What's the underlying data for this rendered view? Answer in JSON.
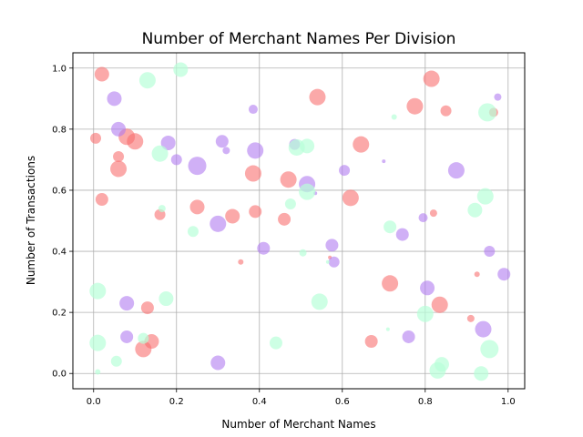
{
  "chart_data": {
    "type": "scatter",
    "title": "Number of Merchant Names Per Division",
    "xlabel": "Number of Merchant Names",
    "ylabel": "Number of Transactions",
    "xlim": [
      -0.05,
      1.04
    ],
    "ylim": [
      -0.05,
      1.05
    ],
    "xticks": [
      "0.0",
      "0.2",
      "0.4",
      "0.6",
      "0.8",
      "1.0"
    ],
    "yticks": [
      "0.0",
      "0.2",
      "0.4",
      "0.6",
      "0.8",
      "1.0"
    ],
    "grid": true,
    "colors": {
      "red": "#f87070",
      "purple": "#b17cf0",
      "green": "#b8ffd8"
    },
    "series": [
      {
        "color": "red",
        "opacity": 0.6,
        "points": [
          {
            "x": 0.02,
            "y": 0.98,
            "s": 8
          },
          {
            "x": 0.005,
            "y": 0.77,
            "s": 6
          },
          {
            "x": 0.02,
            "y": 0.57,
            "s": 7
          },
          {
            "x": 0.06,
            "y": 0.71,
            "s": 6
          },
          {
            "x": 0.06,
            "y": 0.67,
            "s": 9
          },
          {
            "x": 0.08,
            "y": 0.775,
            "s": 9
          },
          {
            "x": 0.1,
            "y": 0.76,
            "s": 9
          },
          {
            "x": 0.16,
            "y": 0.52,
            "s": 6
          },
          {
            "x": 0.13,
            "y": 0.215,
            "s": 7
          },
          {
            "x": 0.12,
            "y": 0.08,
            "s": 9
          },
          {
            "x": 0.14,
            "y": 0.105,
            "s": 8
          },
          {
            "x": 0.25,
            "y": 0.545,
            "s": 8
          },
          {
            "x": 0.335,
            "y": 0.515,
            "s": 8
          },
          {
            "x": 0.355,
            "y": 0.365,
            "s": 3
          },
          {
            "x": 0.385,
            "y": 0.655,
            "s": 9
          },
          {
            "x": 0.39,
            "y": 0.53,
            "s": 7
          },
          {
            "x": 0.46,
            "y": 0.505,
            "s": 7
          },
          {
            "x": 0.47,
            "y": 0.635,
            "s": 9
          },
          {
            "x": 0.54,
            "y": 0.905,
            "s": 9
          },
          {
            "x": 0.62,
            "y": 0.575,
            "s": 9
          },
          {
            "x": 0.645,
            "y": 0.75,
            "s": 9
          },
          {
            "x": 0.67,
            "y": 0.105,
            "s": 7
          },
          {
            "x": 0.715,
            "y": 0.295,
            "s": 9
          },
          {
            "x": 0.775,
            "y": 0.875,
            "s": 9
          },
          {
            "x": 0.815,
            "y": 0.965,
            "s": 9
          },
          {
            "x": 0.82,
            "y": 0.525,
            "s": 4
          },
          {
            "x": 0.835,
            "y": 0.225,
            "s": 9
          },
          {
            "x": 0.85,
            "y": 0.86,
            "s": 6
          },
          {
            "x": 0.91,
            "y": 0.18,
            "s": 4
          },
          {
            "x": 0.925,
            "y": 0.325,
            "s": 3
          },
          {
            "x": 0.965,
            "y": 0.855,
            "s": 5
          },
          {
            "x": 0.57,
            "y": 0.38,
            "s": 2
          }
        ]
      },
      {
        "color": "purple",
        "opacity": 0.6,
        "points": [
          {
            "x": 0.05,
            "y": 0.9,
            "s": 8
          },
          {
            "x": 0.06,
            "y": 0.8,
            "s": 8
          },
          {
            "x": 0.08,
            "y": 0.23,
            "s": 8
          },
          {
            "x": 0.08,
            "y": 0.12,
            "s": 7
          },
          {
            "x": 0.18,
            "y": 0.755,
            "s": 8
          },
          {
            "x": 0.2,
            "y": 0.7,
            "s": 6
          },
          {
            "x": 0.25,
            "y": 0.68,
            "s": 10
          },
          {
            "x": 0.31,
            "y": 0.76,
            "s": 7
          },
          {
            "x": 0.32,
            "y": 0.73,
            "s": 4
          },
          {
            "x": 0.3,
            "y": 0.49,
            "s": 9
          },
          {
            "x": 0.3,
            "y": 0.035,
            "s": 8
          },
          {
            "x": 0.385,
            "y": 0.865,
            "s": 5
          },
          {
            "x": 0.39,
            "y": 0.73,
            "s": 9
          },
          {
            "x": 0.41,
            "y": 0.41,
            "s": 7
          },
          {
            "x": 0.485,
            "y": 0.75,
            "s": 6
          },
          {
            "x": 0.515,
            "y": 0.62,
            "s": 9
          },
          {
            "x": 0.535,
            "y": 0.59,
            "s": 2
          },
          {
            "x": 0.575,
            "y": 0.42,
            "s": 7
          },
          {
            "x": 0.58,
            "y": 0.365,
            "s": 6
          },
          {
            "x": 0.605,
            "y": 0.665,
            "s": 6
          },
          {
            "x": 0.7,
            "y": 0.695,
            "s": 2
          },
          {
            "x": 0.745,
            "y": 0.455,
            "s": 7
          },
          {
            "x": 0.76,
            "y": 0.12,
            "s": 7
          },
          {
            "x": 0.795,
            "y": 0.51,
            "s": 5
          },
          {
            "x": 0.805,
            "y": 0.28,
            "s": 8
          },
          {
            "x": 0.875,
            "y": 0.665,
            "s": 9
          },
          {
            "x": 0.94,
            "y": 0.145,
            "s": 9
          },
          {
            "x": 0.955,
            "y": 0.4,
            "s": 6
          },
          {
            "x": 0.975,
            "y": 0.905,
            "s": 4
          },
          {
            "x": 0.99,
            "y": 0.325,
            "s": 7
          }
        ]
      },
      {
        "color": "green",
        "opacity": 0.7,
        "points": [
          {
            "x": 0.01,
            "y": 0.27,
            "s": 9
          },
          {
            "x": 0.01,
            "y": 0.1,
            "s": 9
          },
          {
            "x": 0.01,
            "y": 0.005,
            "s": 3
          },
          {
            "x": 0.055,
            "y": 0.04,
            "s": 6
          },
          {
            "x": 0.13,
            "y": 0.96,
            "s": 9
          },
          {
            "x": 0.12,
            "y": 0.115,
            "s": 6
          },
          {
            "x": 0.16,
            "y": 0.72,
            "s": 9
          },
          {
            "x": 0.165,
            "y": 0.54,
            "s": 4
          },
          {
            "x": 0.175,
            "y": 0.245,
            "s": 8
          },
          {
            "x": 0.21,
            "y": 0.995,
            "s": 8
          },
          {
            "x": 0.24,
            "y": 0.465,
            "s": 6
          },
          {
            "x": 0.44,
            "y": 0.1,
            "s": 7
          },
          {
            "x": 0.475,
            "y": 0.555,
            "s": 6
          },
          {
            "x": 0.49,
            "y": 0.74,
            "s": 9
          },
          {
            "x": 0.515,
            "y": 0.745,
            "s": 8
          },
          {
            "x": 0.515,
            "y": 0.595,
            "s": 9
          },
          {
            "x": 0.505,
            "y": 0.395,
            "s": 4
          },
          {
            "x": 0.545,
            "y": 0.235,
            "s": 9
          },
          {
            "x": 0.565,
            "y": 0.365,
            "s": 2
          },
          {
            "x": 0.715,
            "y": 0.48,
            "s": 7
          },
          {
            "x": 0.725,
            "y": 0.84,
            "s": 3
          },
          {
            "x": 0.71,
            "y": 0.145,
            "s": 2
          },
          {
            "x": 0.8,
            "y": 0.195,
            "s": 9
          },
          {
            "x": 0.83,
            "y": 0.01,
            "s": 9
          },
          {
            "x": 0.84,
            "y": 0.03,
            "s": 8
          },
          {
            "x": 0.92,
            "y": 0.535,
            "s": 8
          },
          {
            "x": 0.935,
            "y": 0.0,
            "s": 8
          },
          {
            "x": 0.945,
            "y": 0.58,
            "s": 9
          },
          {
            "x": 0.95,
            "y": 0.855,
            "s": 10
          },
          {
            "x": 0.955,
            "y": 0.08,
            "s": 10
          }
        ]
      }
    ]
  }
}
